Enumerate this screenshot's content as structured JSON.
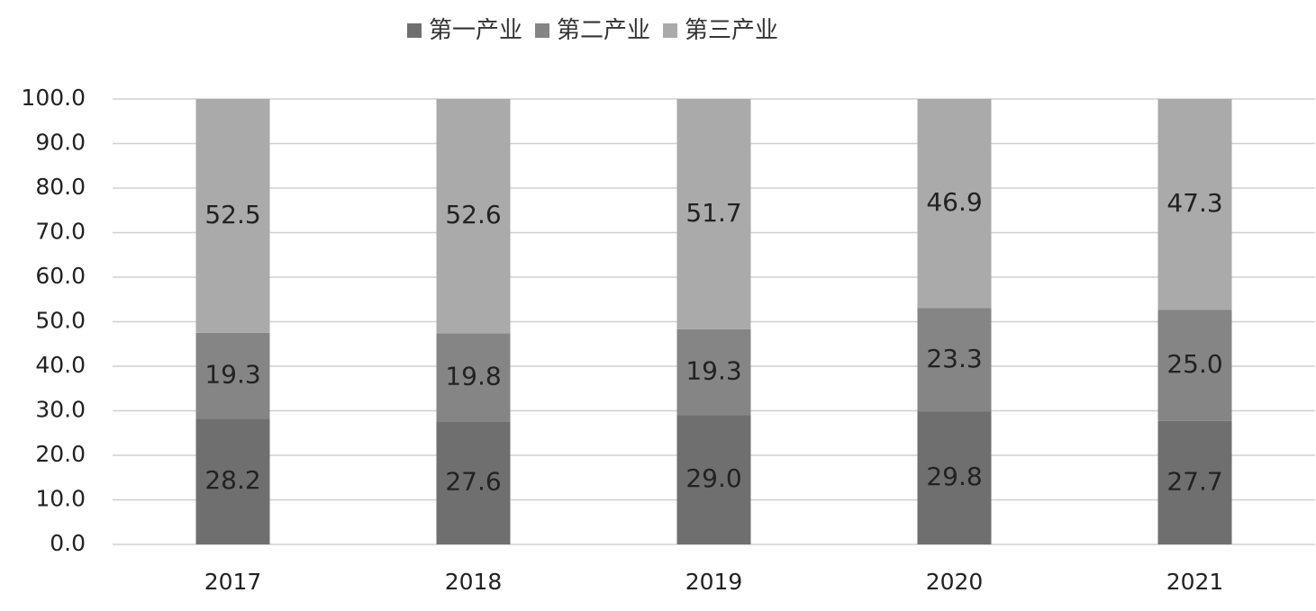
{
  "chart_data": {
    "type": "stacked-bar",
    "categories": [
      "2017",
      "2018",
      "2019",
      "2020",
      "2021"
    ],
    "series": [
      {
        "name": "第一产业",
        "color": "#6f6f6f",
        "values": [
          28.2,
          27.6,
          29.0,
          29.8,
          27.7
        ],
        "value_labels": [
          "28.2",
          "27.6",
          "29.0",
          "29.8",
          "27.7"
        ]
      },
      {
        "name": "第二产业",
        "color": "#858585",
        "values": [
          19.3,
          19.8,
          19.3,
          23.3,
          25.0
        ],
        "value_labels": [
          "19.3",
          "19.8",
          "19.3",
          "23.3",
          "25.0"
        ]
      },
      {
        "name": "第三产业",
        "color": "#aaaaaa",
        "values": [
          52.5,
          52.6,
          51.7,
          46.9,
          47.3
        ],
        "value_labels": [
          "52.5",
          "52.6",
          "51.7",
          "46.9",
          "47.3"
        ]
      }
    ],
    "ylim": [
      0,
      100
    ],
    "yticks": [
      {
        "value": 0,
        "label": "0.0"
      },
      {
        "value": 10,
        "label": "10.0"
      },
      {
        "value": 20,
        "label": "20.0"
      },
      {
        "value": 30,
        "label": "30.0"
      },
      {
        "value": 40,
        "label": "40.0"
      },
      {
        "value": 50,
        "label": "50.0"
      },
      {
        "value": 60,
        "label": "60.0"
      },
      {
        "value": 70,
        "label": "70.0"
      },
      {
        "value": 80,
        "label": "80.0"
      },
      {
        "value": 90,
        "label": "90.0"
      },
      {
        "value": 100,
        "label": "100.0"
      }
    ],
    "grid": true,
    "legend": "top"
  }
}
